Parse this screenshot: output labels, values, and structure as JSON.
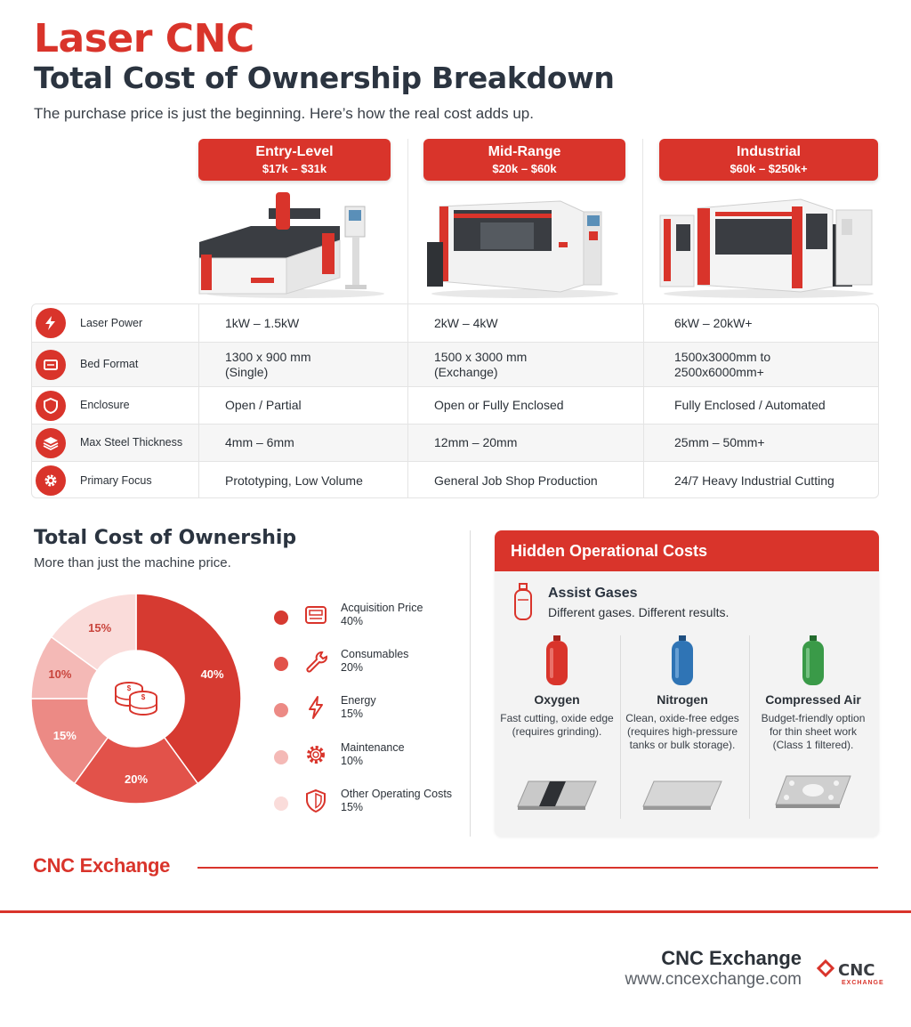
{
  "header": {
    "title": "Laser CNC",
    "subtitle": "Total Cost of Ownership Breakdown",
    "tagline": "The purchase price is just the beginning. Here’s how the real cost adds up."
  },
  "tiers": [
    {
      "name": "Entry-Level",
      "price": "$17k – $31k"
    },
    {
      "name": "Mid-Range",
      "price": "$20k – $60k"
    },
    {
      "name": "Industrial",
      "price": "$60k – $250k+"
    }
  ],
  "spec_rows": [
    {
      "icon": "laser-power-icon",
      "label": "Laser Power",
      "values": [
        "1kW – 1.5kW",
        "2kW – 4kW",
        "6kW – 20kW+"
      ]
    },
    {
      "icon": "bed-format-icon",
      "label": "Bed Format",
      "values": [
        "1300 x 900 mm\n(Single)",
        "1500 x 3000 mm\n(Exchange)",
        "1500x3000mm to\n2500x6000mm+"
      ]
    },
    {
      "icon": "shield-icon",
      "label": "Enclosure",
      "values": [
        "Open / Partial",
        "Open or Fully Enclosed",
        "Fully Enclosed / Automated"
      ]
    },
    {
      "icon": "layers-icon",
      "label": "Max Steel Thickness",
      "values": [
        "4mm – 6mm",
        "12mm – 20mm",
        "25mm – 50mm+"
      ]
    },
    {
      "icon": "gear-icon",
      "label": "Primary Focus",
      "values": [
        "Prototyping, Low Volume",
        "General Job Shop Production",
        "24/7 Heavy Industrial Cutting"
      ]
    }
  ],
  "tco": {
    "title": "Total Cost of Ownership",
    "subtitle": "More than just the machine price."
  },
  "chart_data": {
    "type": "pie",
    "categories": [
      "Acquisition Price",
      "Consumables",
      "Energy",
      "Maintenance",
      "Other Operating Costs"
    ],
    "values": [
      40,
      20,
      15,
      10,
      15
    ],
    "labels": [
      "40%",
      "20%",
      "15%",
      "10%",
      "15%"
    ],
    "legend_pcts": [
      "40%",
      "20%",
      "15%",
      "10%",
      "15%"
    ],
    "colors": [
      "#d63a31",
      "#e2524a",
      "#ec8a85",
      "#f4b9b6",
      "#fadcda"
    ],
    "legend_icons": [
      "register-icon",
      "wrench-icon",
      "lightning-icon",
      "gear-icon",
      "shield-icon"
    ],
    "center_icon": "coins-icon",
    "legend_placement": "right"
  },
  "hidden_costs": {
    "title": "Hidden Operational Costs",
    "assist_title": "Assist Gases",
    "assist_sub": "Different gases. Different results.",
    "gases": [
      {
        "name": "Oxygen",
        "desc": "Fast cutting, oxide edge (requires grinding).",
        "color": "#d9342b"
      },
      {
        "name": "Nitrogen",
        "desc": "Clean, oxide-free edges (requires high-pressure tanks or bulk storage).",
        "color": "#2f74b5"
      },
      {
        "name": "Compressed Air",
        "desc": "Budget-friendly option for thin sheet work (Class 1 filtered).",
        "color": "#3a9a48"
      }
    ]
  },
  "brand": {
    "name": "CNC Exchange",
    "url": "www.cncexchange.com",
    "logo_text": "CNC",
    "logo_sub": "EXCHANGE"
  }
}
